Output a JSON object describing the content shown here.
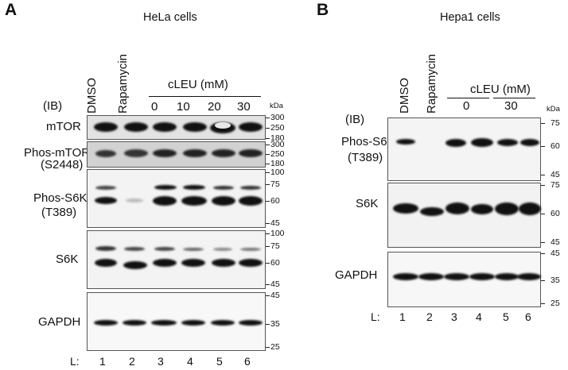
{
  "panelA": {
    "letter": "A",
    "title": "HeLa cells",
    "ib_label": "(IB)",
    "treatments": [
      "DMSO",
      "Rapamycin"
    ],
    "cleu_label": "cLEU (mM)",
    "concentrations": [
      "0",
      "10",
      "20",
      "30"
    ],
    "kda_label": "kDa",
    "blots": [
      {
        "name": "mTOR",
        "sub": "",
        "markers": [
          "300",
          "250",
          "180"
        ]
      },
      {
        "name": "Phos-mTOR",
        "sub": "(S2448)",
        "markers": [
          "300",
          "250",
          "180"
        ]
      },
      {
        "name": "Phos-S6K",
        "sub": "(T389)",
        "markers": [
          "100",
          "75",
          "60",
          "45"
        ]
      },
      {
        "name": "S6K",
        "sub": "",
        "markers": [
          "100",
          "75",
          "60",
          "45"
        ]
      },
      {
        "name": "GAPDH",
        "sub": "",
        "markers": [
          "45",
          "35",
          "25"
        ]
      }
    ],
    "lane_prefix": "L:",
    "lanes": [
      "1",
      "2",
      "3",
      "4",
      "5",
      "6"
    ]
  },
  "panelB": {
    "letter": "B",
    "title": "Hepa1 cells",
    "ib_label": "(IB)",
    "treatments": [
      "DMSO",
      "Rapamycin"
    ],
    "cleu_label": "cLEU (mM)",
    "concentrations": [
      "0",
      "30"
    ],
    "kda_label": "kDa",
    "blots": [
      {
        "name": "Phos-S6K",
        "sub": "(T389)",
        "markers": [
          "75",
          "60",
          "45"
        ]
      },
      {
        "name": "S6K",
        "sub": "",
        "markers": [
          "75",
          "60",
          "45"
        ]
      },
      {
        "name": "GAPDH",
        "sub": "",
        "markers": [
          "45",
          "35",
          "25"
        ]
      }
    ],
    "lane_prefix": "L:",
    "lanes": [
      "1",
      "2",
      "3",
      "4",
      "5",
      "6"
    ]
  }
}
